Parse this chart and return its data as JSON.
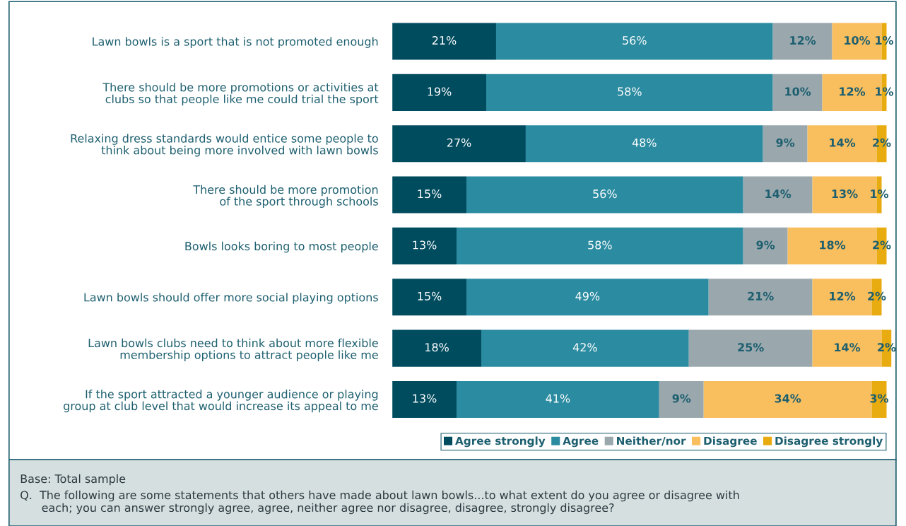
{
  "chart_data": {
    "type": "bar",
    "orientation": "horizontal",
    "stacked": true,
    "data_labels": true,
    "legend": "bottom",
    "grid": false,
    "tick_labels": "y",
    "categories": [
      "Lawn bowls is a sport that is not promoted enough",
      "There should be more promotions or activities at\nclubs so that people like me could trial the sport",
      "Relaxing dress standards would entice some people to\nthink about being more involved with lawn bowls",
      "There should be more promotion\nof the sport through schools",
      "Bowls looks boring to most people",
      "Lawn bowls should offer more social playing options",
      "Lawn bowls clubs need to think about more flexible\nmembership options to attract people like me",
      "If the sport attracted a younger audience or playing\ngroup at club level that would increase its appeal to me"
    ],
    "series": [
      {
        "name": "Agree strongly",
        "color": "#004c5f",
        "values": [
          21,
          19,
          27,
          15,
          13,
          15,
          18,
          13
        ],
        "value_labels": [
          "21%",
          "19%",
          "27%",
          "15%",
          "13%",
          "15%",
          "18%",
          "13%"
        ]
      },
      {
        "name": "Agree",
        "color": "#2b8ba0",
        "values": [
          56,
          58,
          48,
          56,
          58,
          49,
          42,
          41
        ],
        "value_labels": [
          "56%",
          "58%",
          "48%",
          "56%",
          "58%",
          "49%",
          "42%",
          "41%"
        ]
      },
      {
        "name": "Neither/nor",
        "color": "#9aa8ae",
        "values": [
          12,
          10,
          9,
          14,
          9,
          21,
          25,
          9
        ],
        "value_labels": [
          "12%",
          "10%",
          "9%",
          "14%",
          "9%",
          "21%",
          "25%",
          "9%"
        ]
      },
      {
        "name": "Disagree",
        "color": "#f9be5e",
        "values": [
          10,
          12,
          14,
          13,
          18,
          12,
          14,
          34
        ],
        "value_labels": [
          "10%",
          "12%",
          "14%",
          "13%",
          "18%",
          "12%",
          "14%",
          "34%"
        ]
      },
      {
        "name": "Disagree strongly",
        "color": "#e8ab10",
        "values": [
          1,
          1,
          2,
          1,
          2,
          2,
          2,
          3
        ],
        "value_labels": [
          "1%",
          "1%",
          "2%",
          "1%",
          "2%",
          "2%",
          "2%",
          "3%"
        ]
      }
    ],
    "annotations": [
      "Base: Total sample",
      "Q.  The following are some statements that others have made about lawn bowls...to what extent do you agree or disagree with\n      each; you can answer strongly agree, agree, neither agree nor disagree, disagree, strongly disagree?"
    ]
  }
}
